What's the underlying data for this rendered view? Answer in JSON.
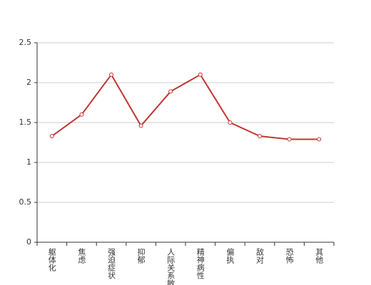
{
  "chart_data": {
    "type": "line",
    "categories": [
      "躯体化",
      "焦虑",
      "强迫症状",
      "抑郁",
      "人际关系敏感",
      "精神病性",
      "偏执",
      "敌对",
      "恐怖",
      "其他"
    ],
    "series": [
      {
        "color": "#c23531",
        "values": [
          1.33,
          1.6,
          2.1,
          1.46,
          1.89,
          2.1,
          1.5,
          1.33,
          1.29,
          1.29
        ]
      }
    ],
    "ylim": [
      0,
      2.5
    ],
    "yticks": [
      0,
      0.5,
      1,
      1.5,
      2,
      2.5
    ],
    "grid": true
  }
}
